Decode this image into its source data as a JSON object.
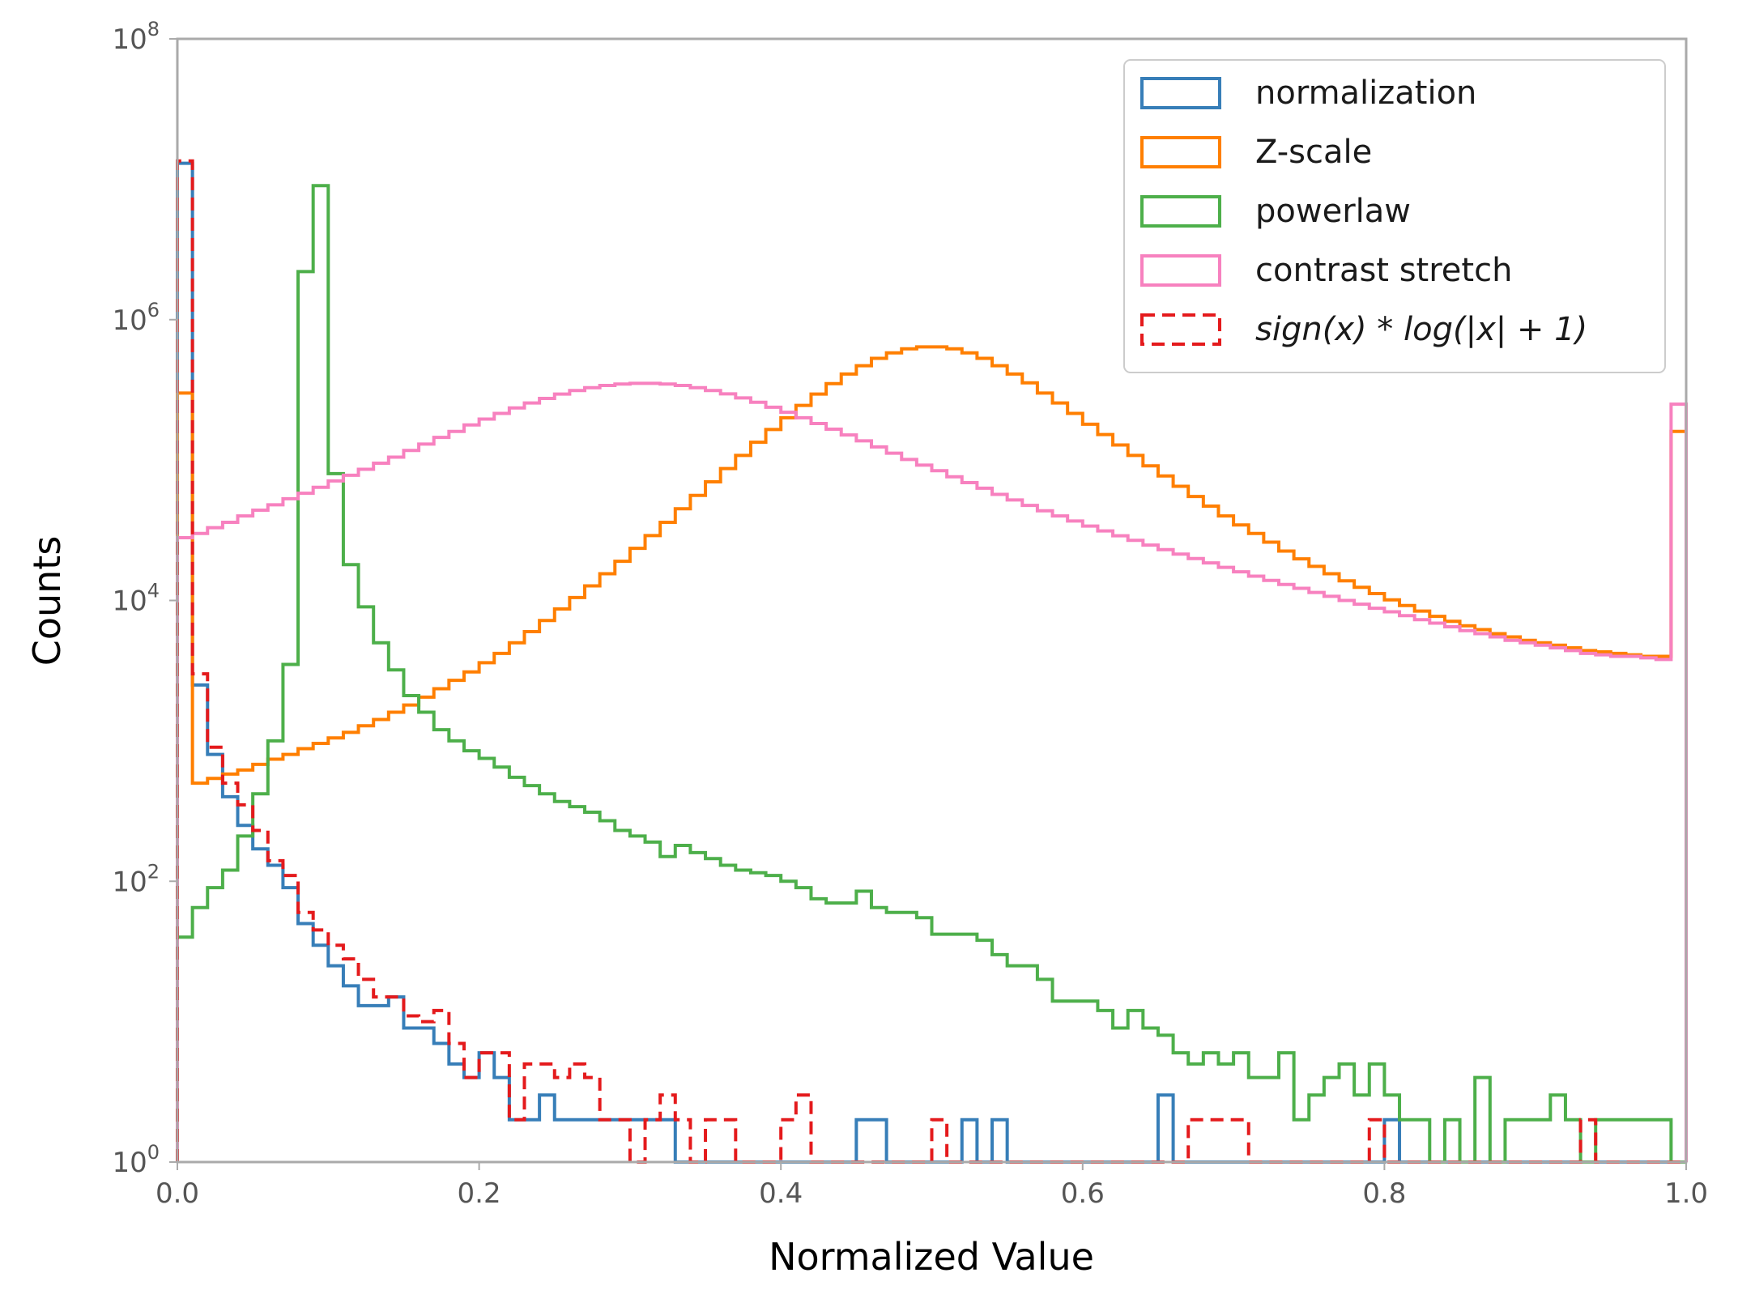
{
  "chart_data": {
    "type": "histogram-step",
    "xlabel": "Normalized Value",
    "ylabel": "Counts",
    "xlim": [
      0.0,
      1.0
    ],
    "ylim": [
      1,
      100000000
    ],
    "yscale": "log",
    "grid": false,
    "legend_position": "top-right",
    "x_ticks": [
      "0.0",
      "0.2",
      "0.4",
      "0.6",
      "0.8",
      "1.0"
    ],
    "y_ticks": [
      {
        "base": "10",
        "exp": "0"
      },
      {
        "base": "10",
        "exp": "2"
      },
      {
        "base": "10",
        "exp": "4"
      },
      {
        "base": "10",
        "exp": "6"
      },
      {
        "base": "10",
        "exp": "8"
      }
    ],
    "bin_width": 0.01,
    "series": [
      {
        "name": "normalization",
        "label": "normalization",
        "color": "#377eb8",
        "dashed": false,
        "values": [
          13000000,
          2500,
          800,
          400,
          250,
          170,
          130,
          90,
          50,
          35,
          25,
          18,
          13,
          13,
          15,
          9,
          9,
          7,
          5,
          4,
          6,
          4,
          2,
          2,
          3,
          2,
          2,
          2,
          2,
          2,
          2,
          2,
          2,
          1,
          1,
          1,
          1,
          1,
          1,
          1,
          1,
          1,
          1,
          1,
          1,
          2,
          2,
          1,
          1,
          1,
          1,
          1,
          2,
          1,
          2,
          1,
          1,
          1,
          1,
          1,
          1,
          1,
          1,
          1,
          1,
          3,
          1,
          1,
          1,
          1,
          1,
          1,
          1,
          1,
          1,
          1,
          1,
          1,
          1,
          1,
          2,
          1,
          1,
          1,
          1,
          1,
          1,
          1,
          1,
          1,
          1,
          1,
          1,
          1,
          1,
          1,
          1,
          1,
          1,
          1
        ]
      },
      {
        "name": "Z-scale",
        "label": "Z-scale",
        "color": "#ff7f00",
        "dashed": false,
        "values": [
          300000,
          500,
          540,
          580,
          620,
          680,
          740,
          800,
          880,
          960,
          1050,
          1150,
          1280,
          1420,
          1600,
          1800,
          2050,
          2350,
          2700,
          3100,
          3600,
          4200,
          5000,
          6000,
          7200,
          8700,
          10500,
          12700,
          15500,
          19000,
          23500,
          29000,
          36000,
          45000,
          56000,
          70000,
          87000,
          108000,
          134000,
          165000,
          200000,
          245000,
          295000,
          350000,
          410000,
          470000,
          530000,
          580000,
          620000,
          640000,
          640000,
          620000,
          580000,
          530000,
          470000,
          410000,
          355000,
          300000,
          255000,
          215000,
          180000,
          152000,
          128000,
          108000,
          91000,
          77000,
          65000,
          55000,
          47000,
          40000,
          34500,
          30000,
          26000,
          22500,
          19800,
          17500,
          15500,
          13800,
          12400,
          11200,
          10100,
          9200,
          8400,
          7700,
          7100,
          6600,
          6200,
          5800,
          5500,
          5200,
          5000,
          4800,
          4600,
          4400,
          4300,
          4200,
          4100,
          4000,
          4000,
          160000
        ]
      },
      {
        "name": "powerlaw",
        "label": "powerlaw",
        "color": "#4daf4a",
        "dashed": false,
        "values": [
          40,
          65,
          90,
          120,
          210,
          420,
          1000,
          3500,
          2200000,
          9000000,
          80000,
          18000,
          9000,
          5000,
          3200,
          2100,
          1600,
          1200,
          1000,
          850,
          750,
          650,
          550,
          480,
          420,
          370,
          340,
          310,
          270,
          230,
          210,
          190,
          150,
          180,
          160,
          145,
          130,
          120,
          115,
          110,
          100,
          90,
          75,
          70,
          70,
          85,
          65,
          60,
          60,
          55,
          42,
          42,
          42,
          38,
          30,
          25,
          25,
          20,
          14,
          14,
          14,
          12,
          9,
          12,
          9,
          8,
          6,
          5,
          6,
          5,
          6,
          4,
          4,
          6,
          2,
          3,
          4,
          5,
          3,
          5,
          3,
          2,
          2,
          1,
          2,
          1,
          4,
          1,
          2,
          2,
          2,
          3,
          2,
          1,
          2,
          2,
          2,
          2,
          2,
          1
        ]
      },
      {
        "name": "contrast stretch",
        "label": "contrast stretch",
        "color": "#f781bf",
        "dashed": false,
        "values": [
          28000,
          30000,
          33000,
          36000,
          40000,
          44000,
          48000,
          53000,
          58000,
          64000,
          71000,
          78000,
          86000,
          95000,
          105000,
          117000,
          130000,
          145000,
          160000,
          178000,
          196000,
          215000,
          235000,
          255000,
          275000,
          295000,
          313000,
          328000,
          340000,
          348000,
          352000,
          352000,
          348000,
          340000,
          328000,
          313000,
          296000,
          277000,
          258000,
          238000,
          219000,
          200000,
          182000,
          166000,
          151000,
          137000,
          124000,
          112000,
          101000,
          92000,
          84000,
          76000,
          69000,
          63000,
          57000,
          52000,
          47500,
          43500,
          40000,
          36800,
          33900,
          31300,
          28900,
          26800,
          24800,
          23000,
          21400,
          19900,
          18500,
          17200,
          16000,
          14900,
          13900,
          13000,
          12200,
          11400,
          10700,
          10000,
          9400,
          8800,
          8300,
          7800,
          7300,
          6900,
          6500,
          6100,
          5800,
          5500,
          5200,
          5000,
          4800,
          4600,
          4400,
          4200,
          4100,
          4000,
          4000,
          3900,
          3800,
          250000
        ]
      },
      {
        "name": "sign(x) * log(|x| + 1)",
        "label": "sign(x) * log(|x| + 1)",
        "color": "#e41a1c",
        "dashed": true,
        "values": [
          13500000,
          3000,
          900,
          500,
          350,
          230,
          140,
          110,
          60,
          45,
          35,
          28,
          20,
          15,
          15,
          11,
          10,
          12,
          7,
          4,
          6,
          6,
          2,
          5,
          5,
          4,
          5,
          4,
          2,
          2,
          1,
          2,
          3,
          2,
          1,
          2,
          2,
          1,
          1,
          1,
          2,
          3,
          1,
          1,
          1,
          1,
          1,
          1,
          1,
          1,
          2,
          1,
          1,
          1,
          1,
          1,
          1,
          1,
          1,
          1,
          1,
          1,
          1,
          1,
          1,
          1,
          1,
          2,
          2,
          2,
          2,
          1,
          1,
          1,
          1,
          1,
          1,
          1,
          1,
          2,
          1,
          1,
          1,
          1,
          1,
          1,
          1,
          1,
          1,
          1,
          1,
          1,
          1,
          2,
          1,
          1,
          1,
          1,
          1,
          1
        ]
      }
    ]
  },
  "legend": {
    "entries": [
      {
        "label": "normalization"
      },
      {
        "label": "Z-scale"
      },
      {
        "label": "powerlaw"
      },
      {
        "label": "contrast stretch"
      },
      {
        "label": "sign(x) * log(|x| + 1)"
      }
    ]
  }
}
